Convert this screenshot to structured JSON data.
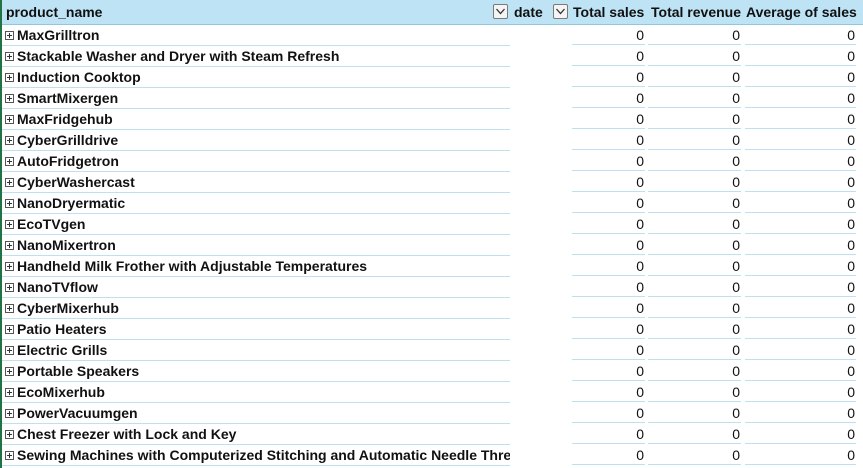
{
  "headers": {
    "product_name": "product_name",
    "date": "date",
    "total_sales": "Total sales",
    "total_revenue": "Total revenue",
    "average_of_sales": "Average of sales"
  },
  "rows": [
    {
      "name": "MaxGrilltron",
      "sales": "0",
      "revenue": "0",
      "avg": "0"
    },
    {
      "name": "Stackable Washer and Dryer with Steam Refresh",
      "sales": "0",
      "revenue": "0",
      "avg": "0"
    },
    {
      "name": "Induction Cooktop",
      "sales": "0",
      "revenue": "0",
      "avg": "0"
    },
    {
      "name": "SmartMixergen",
      "sales": "0",
      "revenue": "0",
      "avg": "0"
    },
    {
      "name": "MaxFridgehub",
      "sales": "0",
      "revenue": "0",
      "avg": "0"
    },
    {
      "name": "CyberGrilldrive",
      "sales": "0",
      "revenue": "0",
      "avg": "0"
    },
    {
      "name": "AutoFridgetron",
      "sales": "0",
      "revenue": "0",
      "avg": "0"
    },
    {
      "name": "CyberWashercast",
      "sales": "0",
      "revenue": "0",
      "avg": "0"
    },
    {
      "name": "NanoDryermatic",
      "sales": "0",
      "revenue": "0",
      "avg": "0"
    },
    {
      "name": "EcoTVgen",
      "sales": "0",
      "revenue": "0",
      "avg": "0"
    },
    {
      "name": "NanoMixertron",
      "sales": "0",
      "revenue": "0",
      "avg": "0"
    },
    {
      "name": "Handheld Milk Frother with Adjustable Temperatures",
      "sales": "0",
      "revenue": "0",
      "avg": "0"
    },
    {
      "name": "NanoTVflow",
      "sales": "0",
      "revenue": "0",
      "avg": "0"
    },
    {
      "name": "CyberMixerhub",
      "sales": "0",
      "revenue": "0",
      "avg": "0"
    },
    {
      "name": "Patio Heaters",
      "sales": "0",
      "revenue": "0",
      "avg": "0"
    },
    {
      "name": "Electric Grills",
      "sales": "0",
      "revenue": "0",
      "avg": "0"
    },
    {
      "name": "Portable Speakers",
      "sales": "0",
      "revenue": "0",
      "avg": "0"
    },
    {
      "name": "EcoMixerhub",
      "sales": "0",
      "revenue": "0",
      "avg": "0"
    },
    {
      "name": "PowerVacuumgen",
      "sales": "0",
      "revenue": "0",
      "avg": "0"
    },
    {
      "name": "Chest Freezer with Lock and Key",
      "sales": "0",
      "revenue": "0",
      "avg": "0"
    },
    {
      "name": "Sewing Machines with Computerized Stitching and Automatic Needle Threader",
      "sales": "0",
      "revenue": "0",
      "avg": "0"
    }
  ],
  "icons": {
    "filter": "dropdown-filter-icon",
    "expand": "expand-plus-icon"
  },
  "colors": {
    "header_bg": "#bde3f5",
    "row_line": "#bfe0ef",
    "selection": "#217346"
  }
}
